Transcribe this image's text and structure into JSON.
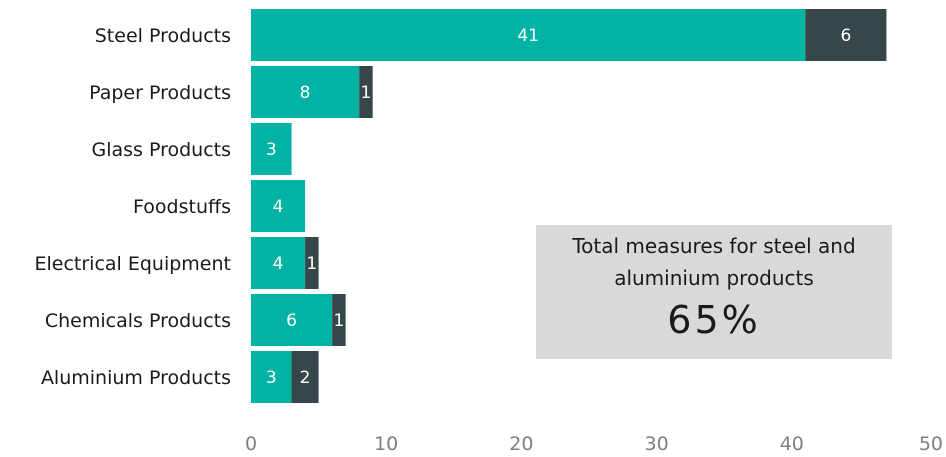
{
  "chart_data": {
    "type": "bar",
    "orientation": "horizontal",
    "stacked": true,
    "categories": [
      "Steel Products",
      "Paper Products",
      "Glass Products",
      "Foodstuffs",
      "Electrical Equipment",
      "Chemicals Products",
      "Aluminium Products"
    ],
    "series": [
      {
        "values": [
          41,
          8,
          3,
          4,
          4,
          6,
          3
        ]
      },
      {
        "values": [
          6,
          1,
          0,
          0,
          1,
          1,
          2
        ]
      }
    ],
    "xlim": [
      0,
      50
    ],
    "xticks": [
      0,
      10,
      20,
      30,
      40,
      50
    ],
    "grid": false,
    "colors": {
      "series1": "#00b3a4",
      "series2": "#374649"
    }
  },
  "callout": {
    "text": "Total measures for steel and aluminium products",
    "value": "65%"
  }
}
